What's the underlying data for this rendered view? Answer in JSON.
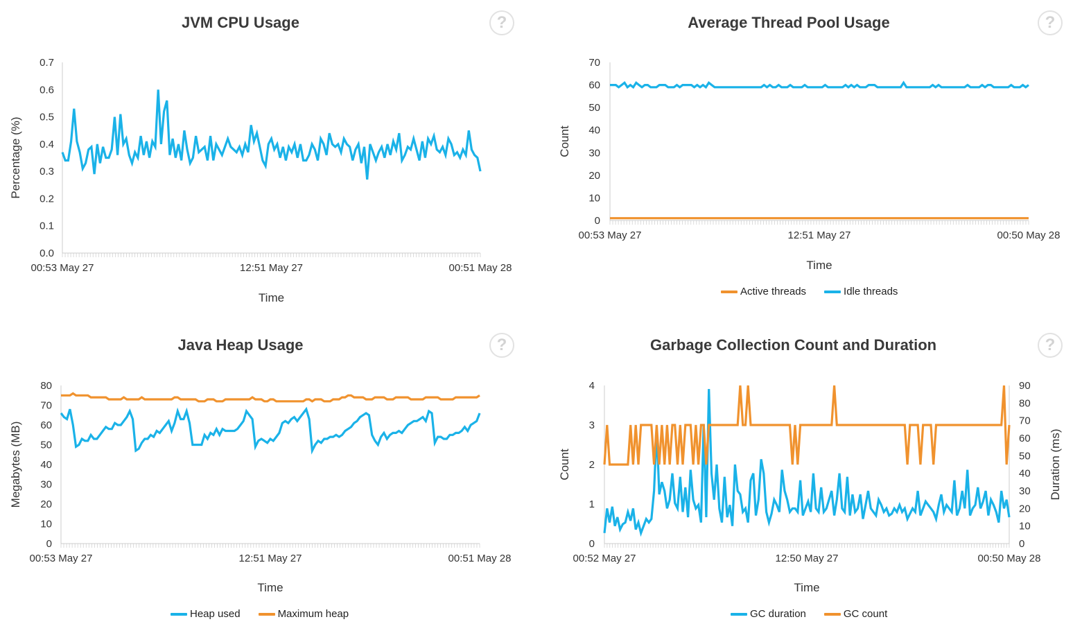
{
  "help_icon": {
    "icon": "question-mark-icon",
    "label": "?"
  },
  "colors": {
    "blue": "#1ab2e8",
    "orange": "#f0922e",
    "axis": "#cccccc",
    "text": "#333333"
  },
  "chart_data": [
    {
      "id": "jvm-cpu",
      "type": "line",
      "title": "JVM CPU Usage",
      "xlabel": "Time",
      "ylabel": "Percentage (%)",
      "ylim": [
        0,
        0.7
      ],
      "yticks": [
        "0.0",
        "0.1",
        "0.2",
        "0.3",
        "0.4",
        "0.5",
        "0.6",
        "0.7"
      ],
      "xticks": [
        "00:53 May 27",
        "12:51 May 27",
        "00:51 May 28"
      ],
      "legend": [],
      "series": [
        {
          "name": "JVM CPU",
          "color": "#1ab2e8",
          "axis": "left",
          "values": [
            0.37,
            0.34,
            0.34,
            0.41,
            0.53,
            0.41,
            0.37,
            0.31,
            0.33,
            0.38,
            0.39,
            0.29,
            0.4,
            0.33,
            0.39,
            0.35,
            0.35,
            0.38,
            0.5,
            0.36,
            0.51,
            0.4,
            0.42,
            0.36,
            0.33,
            0.37,
            0.35,
            0.43,
            0.36,
            0.41,
            0.35,
            0.41,
            0.39,
            0.6,
            0.4,
            0.52,
            0.56,
            0.36,
            0.42,
            0.35,
            0.4,
            0.34,
            0.45,
            0.38,
            0.33,
            0.35,
            0.43,
            0.37,
            0.38,
            0.39,
            0.34,
            0.43,
            0.34,
            0.4,
            0.38,
            0.36,
            0.39,
            0.42,
            0.39,
            0.38,
            0.37,
            0.39,
            0.36,
            0.4,
            0.37,
            0.47,
            0.41,
            0.44,
            0.39,
            0.34,
            0.32,
            0.4,
            0.42,
            0.38,
            0.4,
            0.35,
            0.39,
            0.34,
            0.39,
            0.37,
            0.4,
            0.35,
            0.4,
            0.34,
            0.34,
            0.36,
            0.4,
            0.38,
            0.34,
            0.42,
            0.4,
            0.36,
            0.44,
            0.4,
            0.39,
            0.4,
            0.37,
            0.42,
            0.4,
            0.39,
            0.34,
            0.38,
            0.4,
            0.33,
            0.39,
            0.27,
            0.4,
            0.37,
            0.34,
            0.37,
            0.39,
            0.35,
            0.4,
            0.36,
            0.41,
            0.38,
            0.44,
            0.34,
            0.36,
            0.39,
            0.38,
            0.42,
            0.38,
            0.34,
            0.41,
            0.35,
            0.42,
            0.4,
            0.43,
            0.38,
            0.37,
            0.39,
            0.36,
            0.42,
            0.4,
            0.36,
            0.37,
            0.35,
            0.38,
            0.36,
            0.45,
            0.38,
            0.36,
            0.35,
            0.3
          ]
        }
      ]
    },
    {
      "id": "thread-pool",
      "type": "line",
      "title": "Average Thread Pool Usage",
      "xlabel": "Time",
      "ylabel": "Count",
      "ylim": [
        0,
        70
      ],
      "yticks": [
        "0",
        "10",
        "20",
        "30",
        "40",
        "50",
        "60",
        "70"
      ],
      "xticks": [
        "00:53 May 27",
        "12:51 May 27",
        "00:50 May 28"
      ],
      "legend": [
        "Active threads",
        "Idle threads"
      ],
      "series": [
        {
          "name": "Active threads",
          "color": "#f0922e",
          "axis": "left",
          "values": [
            1,
            1,
            1,
            1,
            1,
            1,
            1,
            1,
            1,
            1,
            1,
            1,
            1,
            1,
            1,
            1,
            1,
            1,
            1,
            1,
            1,
            1,
            1,
            1,
            1,
            1,
            1,
            1,
            1,
            1,
            1,
            1,
            1,
            1,
            1,
            1,
            1,
            1,
            1,
            1,
            1,
            1,
            1,
            1,
            1,
            1,
            1,
            1,
            1,
            1,
            1,
            1,
            1,
            1,
            1,
            1,
            1,
            1,
            1,
            1,
            1,
            1,
            1,
            1,
            1,
            1,
            1,
            1,
            1,
            1,
            1,
            1,
            1,
            1,
            1,
            1,
            1,
            1,
            1,
            1,
            1,
            1,
            1,
            1,
            1,
            1,
            1,
            1,
            1,
            1,
            1,
            1,
            1,
            1,
            1,
            1,
            1,
            1,
            1,
            1,
            1,
            1,
            1,
            1,
            1,
            1,
            1,
            1,
            1,
            1,
            1,
            1,
            1,
            1,
            1,
            1,
            1,
            1,
            1,
            1,
            1,
            1,
            1,
            1,
            1,
            1,
            1,
            1,
            1,
            1,
            1,
            1,
            1,
            1,
            1,
            1,
            1,
            1,
            1,
            1,
            1,
            1,
            1,
            1,
            1
          ]
        },
        {
          "name": "Idle threads",
          "color": "#1ab2e8",
          "axis": "left",
          "values": [
            60,
            60,
            60,
            59,
            60,
            61,
            59,
            60,
            59,
            61,
            60,
            59,
            60,
            60,
            59,
            59,
            59,
            60,
            60,
            60,
            59,
            59,
            59,
            60,
            59,
            60,
            60,
            60,
            60,
            59,
            60,
            59,
            60,
            59,
            61,
            60,
            59,
            59,
            59,
            59,
            59,
            59,
            59,
            59,
            59,
            59,
            59,
            59,
            59,
            59,
            59,
            59,
            59,
            60,
            59,
            60,
            59,
            59,
            60,
            59,
            59,
            59,
            60,
            59,
            59,
            59,
            59,
            60,
            59,
            59,
            59,
            59,
            59,
            59,
            60,
            59,
            59,
            59,
            59,
            59,
            59,
            60,
            59,
            60,
            59,
            60,
            59,
            59,
            59,
            60,
            60,
            60,
            59,
            59,
            59,
            59,
            59,
            59,
            59,
            59,
            59,
            61,
            59,
            59,
            59,
            59,
            59,
            59,
            59,
            59,
            59,
            60,
            59,
            60,
            59,
            59,
            59,
            59,
            59,
            59,
            59,
            59,
            59,
            60,
            59,
            59,
            59,
            59,
            60,
            59,
            60,
            60,
            59,
            59,
            59,
            59,
            59,
            59,
            60,
            59,
            59,
            59,
            60,
            59,
            60
          ]
        }
      ]
    },
    {
      "id": "heap",
      "type": "line",
      "title": "Java Heap Usage",
      "xlabel": "Time",
      "ylabel": "Megabytes (MB)",
      "ylim": [
        0,
        80
      ],
      "yticks": [
        "0",
        "10",
        "20",
        "30",
        "40",
        "50",
        "60",
        "70",
        "80"
      ],
      "xticks": [
        "00:53 May 27",
        "12:51 May 27",
        "00:51 May 28"
      ],
      "legend": [
        "Heap used",
        "Maximum heap"
      ],
      "series": [
        {
          "name": "Heap used",
          "color": "#1ab2e8",
          "axis": "left",
          "values": [
            66,
            64,
            63,
            68,
            60,
            49,
            50,
            53,
            52,
            52,
            55,
            53,
            53,
            55,
            57,
            59,
            58,
            58,
            61,
            60,
            60,
            62,
            64,
            67,
            63,
            47,
            48,
            51,
            53,
            53,
            55,
            54,
            57,
            56,
            58,
            60,
            62,
            57,
            61,
            67,
            63,
            63,
            67,
            61,
            50,
            50,
            50,
            50,
            55,
            53,
            56,
            55,
            58,
            55,
            58,
            57,
            57,
            57,
            57,
            58,
            60,
            62,
            67,
            65,
            63,
            49,
            52,
            53,
            52,
            51,
            53,
            52,
            54,
            56,
            61,
            62,
            61,
            63,
            64,
            62,
            64,
            66,
            68,
            63,
            47,
            50,
            52,
            51,
            53,
            53,
            54,
            54,
            55,
            54,
            55,
            57,
            58,
            59,
            61,
            62,
            64,
            65,
            66,
            65,
            55,
            52,
            50,
            54,
            56,
            53,
            55,
            56,
            56,
            57,
            56,
            58,
            60,
            61,
            62,
            62,
            63,
            64,
            62,
            67,
            66,
            51,
            54,
            54,
            53,
            53,
            55,
            55,
            56,
            56,
            57,
            59,
            57,
            60,
            61,
            62,
            66
          ]
        },
        {
          "name": "Maximum heap",
          "color": "#f0922e",
          "axis": "left",
          "values": [
            75,
            75,
            75,
            75,
            76,
            75,
            75,
            75,
            75,
            75,
            74,
            74,
            74,
            74,
            74,
            74,
            73,
            73,
            73,
            73,
            73,
            74,
            73,
            73,
            73,
            73,
            73,
            74,
            73,
            73,
            73,
            73,
            73,
            73,
            73,
            73,
            73,
            73,
            74,
            74,
            73,
            73,
            73,
            73,
            73,
            73,
            72,
            72,
            72,
            73,
            73,
            73,
            72,
            72,
            72,
            73,
            73,
            73,
            73,
            73,
            73,
            73,
            73,
            73,
            74,
            73,
            73,
            73,
            72,
            72,
            73,
            73,
            72,
            72,
            72,
            72,
            72,
            72,
            72,
            72,
            72,
            72,
            73,
            73,
            72,
            73,
            73,
            73,
            72,
            72,
            72,
            73,
            73,
            73,
            74,
            74,
            75,
            75,
            74,
            74,
            74,
            74,
            73,
            73,
            73,
            74,
            74,
            74,
            74,
            73,
            73,
            73,
            74,
            74,
            74,
            74,
            74,
            73,
            73,
            73,
            73,
            73,
            74,
            74,
            74,
            74,
            74,
            73,
            73,
            73,
            73,
            73,
            74,
            74,
            74,
            74,
            74,
            74,
            74,
            74,
            75
          ]
        }
      ]
    },
    {
      "id": "gc",
      "type": "line",
      "title": "Garbage Collection Count and Duration",
      "xlabel": "Time",
      "ylabel": "Count",
      "ylabel_right": "Duration (ms)",
      "ylim": [
        0,
        4
      ],
      "ylim_right": [
        0,
        90
      ],
      "yticks": [
        "0",
        "1",
        "2",
        "3",
        "4"
      ],
      "yticks_right": [
        "0",
        "10",
        "20",
        "30",
        "40",
        "50",
        "60",
        "70",
        "80",
        "90"
      ],
      "xticks": [
        "00:52 May 27",
        "12:50 May 27",
        "00:50 May 28"
      ],
      "legend": [
        "GC duration",
        "GC count"
      ],
      "series": [
        {
          "name": "GC duration",
          "color": "#1ab2e8",
          "axis": "right",
          "values": [
            6,
            20,
            12,
            21,
            10,
            15,
            8,
            11,
            12,
            18,
            13,
            20,
            8,
            12,
            6,
            10,
            14,
            12,
            14,
            30,
            65,
            28,
            35,
            30,
            20,
            25,
            40,
            23,
            20,
            38,
            18,
            32,
            15,
            42,
            25,
            20,
            22,
            12,
            68,
            15,
            88,
            40,
            25,
            45,
            20,
            12,
            38,
            15,
            22,
            10,
            45,
            30,
            28,
            18,
            20,
            12,
            36,
            40,
            16,
            25,
            48,
            40,
            18,
            12,
            17,
            25,
            22,
            18,
            42,
            30,
            25,
            18,
            20,
            20,
            18,
            36,
            16,
            20,
            24,
            18,
            40,
            20,
            18,
            32,
            18,
            20,
            25,
            30,
            16,
            25,
            40,
            20,
            18,
            38,
            16,
            28,
            18,
            20,
            28,
            14,
            22,
            30,
            20,
            18,
            16,
            25,
            22,
            18,
            20,
            16,
            17,
            20,
            18,
            22,
            18,
            20,
            14,
            17,
            20,
            18,
            30,
            16,
            20,
            24,
            22,
            20,
            18,
            14,
            22,
            28,
            18,
            22,
            20,
            18,
            36,
            16,
            20,
            30,
            20,
            42,
            16,
            20,
            22,
            32,
            20,
            24,
            30,
            16,
            25,
            22,
            18,
            12,
            30,
            20,
            25,
            15
          ]
        },
        {
          "name": "GC count",
          "color": "#f0922e",
          "axis": "left",
          "values": [
            2,
            3,
            2,
            2,
            2,
            2,
            2,
            2,
            2,
            2,
            3,
            2,
            3,
            2,
            3,
            3,
            3,
            3,
            3,
            2,
            3,
            2,
            3,
            2,
            3,
            2,
            3,
            3,
            2,
            3,
            2,
            3,
            3,
            3,
            2,
            3,
            2,
            3,
            3,
            2,
            3,
            3,
            3,
            3,
            3,
            3,
            3,
            3,
            3,
            3,
            3,
            3,
            4,
            3,
            3,
            4,
            3,
            3,
            3,
            3,
            3,
            3,
            3,
            3,
            3,
            3,
            3,
            3,
            3,
            3,
            3,
            3,
            2,
            3,
            2,
            3,
            3,
            3,
            3,
            3,
            3,
            3,
            3,
            3,
            3,
            3,
            3,
            3,
            4,
            3,
            3,
            3,
            3,
            3,
            3,
            3,
            3,
            3,
            3,
            3,
            3,
            3,
            3,
            3,
            3,
            3,
            3,
            3,
            3,
            3,
            3,
            3,
            3,
            3,
            3,
            3,
            2,
            3,
            3,
            3,
            3,
            2,
            3,
            3,
            3,
            3,
            2,
            3,
            3,
            3,
            3,
            3,
            3,
            3,
            3,
            3,
            3,
            3,
            3,
            3,
            3,
            3,
            3,
            3,
            3,
            3,
            3,
            3,
            3,
            3,
            3,
            3,
            3,
            4,
            2,
            3
          ]
        }
      ]
    }
  ]
}
